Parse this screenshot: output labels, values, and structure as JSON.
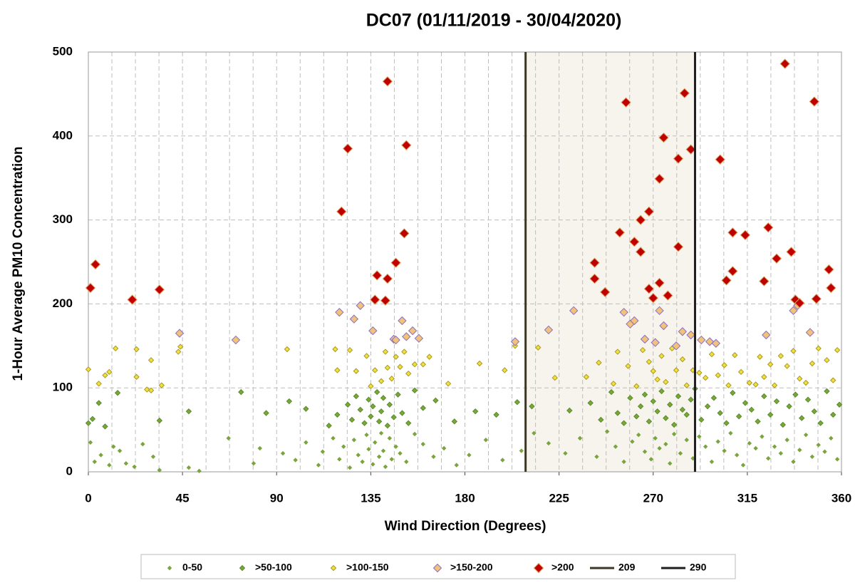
{
  "chart_data": {
    "type": "scatter",
    "title": "DC07 (01/11/2019 - 30/04/2020)",
    "xlabel": "Wind Direction (Degrees)",
    "ylabel": "1-Hour Average PM10 Concentration",
    "xlim": [
      0,
      360
    ],
    "ylim": [
      0,
      500
    ],
    "xticks": [
      0,
      45,
      90,
      135,
      180,
      225,
      270,
      315,
      360
    ],
    "yticks": [
      0,
      100,
      200,
      300,
      400,
      500
    ],
    "x_gridlines": [
      11.25,
      22.5,
      33.75,
      45,
      56.25,
      67.5,
      78.75,
      90,
      101.25,
      112.5,
      123.75,
      135,
      146.25,
      157.5,
      168.75,
      180,
      191.25,
      202.5,
      213.75,
      225,
      236.25,
      247.5,
      258.75,
      270,
      281.25,
      292.5,
      303.75,
      315,
      326.25,
      337.5,
      348.75
    ],
    "grid": true,
    "legend": "bottom",
    "series": [
      {
        "name": "0-50",
        "color": "#7aa43e",
        "edgecolor": "#7aa43e",
        "x": [
          1,
          3,
          6,
          10,
          12,
          15,
          18,
          22,
          26,
          31,
          34,
          48,
          53,
          67,
          79,
          82,
          93,
          99,
          104,
          110,
          112,
          117,
          120,
          122,
          125,
          127,
          129,
          131,
          133,
          134,
          136,
          137,
          139,
          140,
          141,
          142,
          144,
          145,
          147,
          149,
          152,
          156,
          160,
          165,
          170,
          176,
          182,
          190,
          198,
          207,
          213,
          220,
          228,
          235,
          243,
          248,
          252,
          256,
          260,
          263,
          266,
          269,
          271,
          273,
          276,
          278,
          280,
          283,
          286,
          289,
          292,
          295,
          298,
          301,
          304,
          307,
          310,
          313,
          316,
          319,
          322,
          325,
          328,
          331,
          334,
          337,
          340,
          343,
          346,
          349,
          352,
          355,
          358
        ],
        "values": [
          35,
          12,
          20,
          8,
          30,
          25,
          10,
          6,
          33,
          18,
          2,
          5,
          1,
          40,
          10,
          28,
          22,
          14,
          35,
          8,
          24,
          40,
          15,
          30,
          5,
          38,
          20,
          12,
          44,
          27,
          9,
          35,
          18,
          46,
          25,
          6,
          40,
          15,
          30,
          22,
          12,
          45,
          33,
          18,
          28,
          8,
          20,
          38,
          14,
          25,
          46,
          34,
          22,
          40,
          18,
          48,
          30,
          12,
          36,
          44,
          24,
          15,
          40,
          28,
          33,
          10,
          45,
          22,
          38,
          16,
          42,
          30,
          12,
          36,
          25,
          46,
          20,
          8,
          34,
          28,
          42,
          16,
          30,
          22,
          38,
          12,
          26,
          44,
          18,
          32,
          24,
          40,
          15
        ]
      },
      {
        "name": ">50-100",
        "color": "#78a83a",
        "edgecolor": "#5d8a2a",
        "x": [
          0,
          2,
          5,
          8,
          14,
          34,
          48,
          73,
          85,
          96,
          104,
          115,
          119,
          124,
          126,
          128,
          130,
          132,
          134,
          135,
          136,
          138,
          139,
          140,
          141,
          143,
          144,
          146,
          148,
          150,
          153,
          156,
          160,
          166,
          175,
          185,
          195,
          205,
          212,
          230,
          240,
          245,
          250,
          253,
          256,
          259,
          262,
          264,
          266,
          268,
          270,
          272,
          274,
          276,
          278,
          280,
          282,
          284,
          286,
          288,
          290,
          293,
          296,
          299,
          302,
          305,
          308,
          311,
          314,
          317,
          320,
          323,
          326,
          329,
          332,
          335,
          338,
          341,
          344,
          347,
          350,
          353,
          356,
          359
        ],
        "values": [
          58,
          63,
          82,
          54,
          94,
          61,
          72,
          95,
          70,
          84,
          75,
          55,
          68,
          80,
          62,
          90,
          74,
          58,
          86,
          66,
          78,
          95,
          60,
          72,
          88,
          55,
          80,
          65,
          92,
          70,
          58,
          97,
          76,
          85,
          60,
          72,
          68,
          83,
          78,
          73,
          82,
          62,
          95,
          70,
          58,
          88,
          66,
          78,
          92,
          60,
          84,
          72,
          96,
          64,
          80,
          56,
          90,
          74,
          68,
          86,
          99,
          62,
          78,
          88,
          70,
          58,
          94,
          66,
          82,
          74,
          60,
          90,
          68,
          84,
          56,
          78,
          92,
          64,
          86,
          72,
          58,
          96,
          68,
          80
        ]
      },
      {
        "name": ">100-150",
        "color": "#f2e040",
        "edgecolor": "#a89a20",
        "x": [
          0,
          5,
          8,
          10,
          13,
          23,
          23,
          28,
          30,
          30,
          35,
          43,
          44,
          95,
          118,
          119,
          125,
          128,
          133,
          135,
          137,
          140,
          142,
          143,
          145,
          147,
          149,
          151,
          153,
          156,
          160,
          163,
          172,
          187,
          199,
          204,
          215,
          223,
          238,
          244,
          251,
          253,
          258,
          262,
          265,
          268,
          270,
          272,
          274,
          276,
          279,
          281,
          284,
          286,
          289,
          292,
          295,
          298,
          301,
          304,
          306,
          309,
          312,
          316,
          319,
          321,
          323,
          326,
          328,
          331,
          334,
          337,
          340,
          343,
          346,
          349,
          353,
          356,
          358
        ],
        "values": [
          122,
          105,
          115,
          119,
          147,
          146,
          113,
          98,
          97,
          133,
          103,
          143,
          149,
          146,
          146,
          121,
          145,
          120,
          138,
          102,
          121,
          108,
          143,
          124,
          111,
          137,
          125,
          143,
          117,
          128,
          128,
          137,
          105,
          129,
          121,
          150,
          148,
          112,
          113,
          130,
          105,
          143,
          126,
          102,
          145,
          131,
          120,
          110,
          138,
          107,
          147,
          121,
          134,
          103,
          121,
          118,
          112,
          140,
          115,
          127,
          103,
          139,
          119,
          106,
          104,
          137,
          113,
          128,
          103,
          138,
          126,
          144,
          111,
          106,
          129,
          147,
          133,
          109,
          145
        ]
      },
      {
        "name": ">150-200",
        "color": "#f3c27a",
        "edgecolor": "#8a6fc0",
        "x": [
          43.6,
          70.5,
          120,
          127,
          130,
          136,
          146,
          147,
          150,
          152,
          155,
          158,
          204,
          220,
          232,
          256,
          259,
          261,
          266,
          271,
          273,
          275,
          281,
          284,
          288,
          293,
          297,
          300,
          324,
          337,
          339,
          345
        ],
        "values": [
          165,
          157,
          190,
          182,
          198,
          168,
          158,
          157,
          180,
          161,
          168,
          159,
          155,
          169,
          192,
          190,
          176,
          180,
          158,
          154,
          192,
          174,
          150,
          167,
          163,
          157,
          155,
          153,
          163,
          192,
          198,
          166
        ]
      },
      {
        "name": ">200",
        "color": "#c00000",
        "edgecolor": "#d8a060",
        "x": [
          1,
          3.4,
          21,
          34,
          121,
          124,
          137,
          138,
          142,
          143,
          143,
          147,
          151,
          152,
          242,
          242,
          247,
          254,
          257,
          261,
          264,
          264,
          268,
          268,
          270,
          273,
          273,
          275,
          277,
          282,
          282,
          285,
          288,
          302,
          305,
          308,
          308,
          314,
          323,
          325,
          329,
          333,
          336,
          338,
          340,
          348,
          347,
          354,
          355
        ],
        "values": [
          219,
          247,
          205,
          217,
          310,
          385,
          205,
          234,
          204,
          465,
          230,
          249,
          284,
          389,
          249,
          230,
          214,
          285,
          440,
          274,
          262,
          300,
          310,
          218,
          207,
          225,
          349,
          398,
          210,
          373,
          268,
          451,
          384,
          372,
          228,
          239,
          285,
          282,
          227,
          291,
          254,
          486,
          262,
          205,
          201,
          206,
          441,
          241,
          219
        ]
      },
      {
        "name": "209",
        "type": "line",
        "color": "#3c3726",
        "x": [
          209,
          209
        ],
        "values": [
          0,
          500
        ]
      },
      {
        "name": "290",
        "type": "line",
        "color": "#1e1e1e",
        "x": [
          290,
          290
        ],
        "values": [
          0,
          500
        ]
      }
    ]
  }
}
